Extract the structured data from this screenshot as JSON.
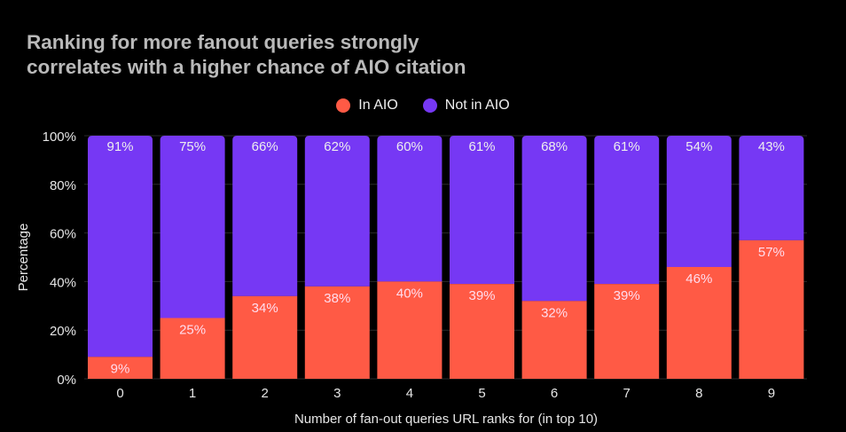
{
  "chart_data": {
    "type": "bar",
    "stacked": true,
    "title": "Ranking for more fanout queries strongly correlates with a higher chance of AIO citation",
    "title_lines": [
      "Ranking for more fanout queries strongly",
      "correlates with a higher chance of AIO citation"
    ],
    "xlabel": "Number of fan-out queries URL ranks for (in top 10)",
    "ylabel": "Percentage",
    "ylim": [
      0,
      100
    ],
    "yticks": [
      "0%",
      "20%",
      "40%",
      "60%",
      "80%",
      "100%"
    ],
    "categories": [
      "0",
      "1",
      "2",
      "3",
      "4",
      "5",
      "6",
      "7",
      "8",
      "9"
    ],
    "series": [
      {
        "name": "In AIO",
        "color": "#FF5A45",
        "values": [
          9,
          25,
          34,
          38,
          40,
          39,
          32,
          39,
          46,
          57
        ]
      },
      {
        "name": "Not in AIO",
        "color": "#7638F4",
        "values": [
          91,
          75,
          66,
          62,
          60,
          61,
          68,
          61,
          54,
          43
        ]
      }
    ],
    "legend_position": "top",
    "grid": true
  }
}
